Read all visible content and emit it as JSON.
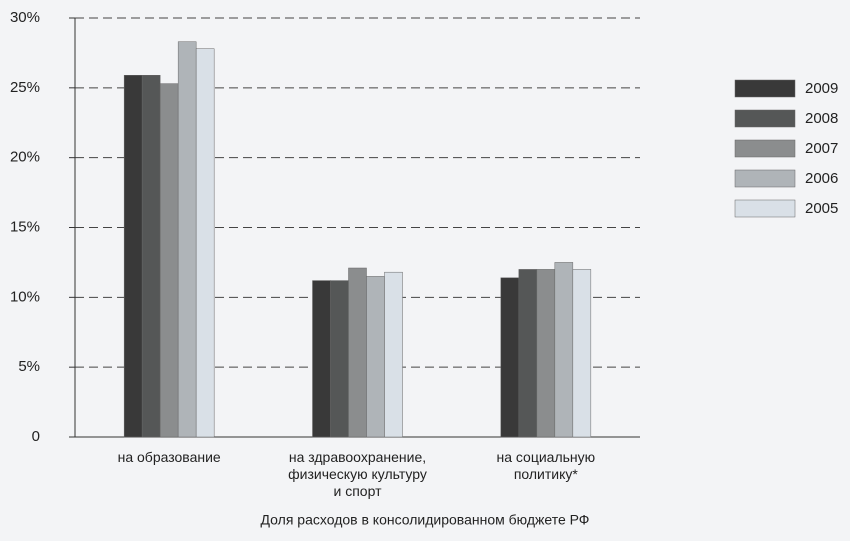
{
  "chart_data": {
    "type": "bar",
    "categories": [
      "на образование",
      "на здравоохранение,\nфизическую культуру\nи спорт",
      "на социальную\nполитику*"
    ],
    "series": [
      {
        "name": "2009",
        "color": "#393939",
        "values": [
          25.9,
          11.2,
          11.4
        ]
      },
      {
        "name": "2008",
        "color": "#555757",
        "values": [
          25.9,
          11.2,
          12.0
        ]
      },
      {
        "name": "2007",
        "color": "#8b8d8e",
        "values": [
          25.3,
          12.1,
          12.0
        ]
      },
      {
        "name": "2006",
        "color": "#afb4b8",
        "values": [
          28.3,
          11.5,
          12.5
        ]
      },
      {
        "name": "2005",
        "color": "#d9e0e7",
        "values": [
          27.8,
          11.8,
          12.0
        ]
      }
    ],
    "xlabel": "Доля расходов в консолидированном бюджете РФ",
    "ylim": [
      0,
      30
    ],
    "yticks": [
      0,
      {
        "value": 5,
        "label": "5%"
      },
      {
        "value": 10,
        "label": "10%"
      },
      {
        "value": 15,
        "label": "15%"
      },
      {
        "value": 20,
        "label": "20%"
      },
      {
        "value": 25,
        "label": "25%"
      },
      {
        "value": 30,
        "label": "30%"
      }
    ],
    "grid": true,
    "legend": "right"
  }
}
